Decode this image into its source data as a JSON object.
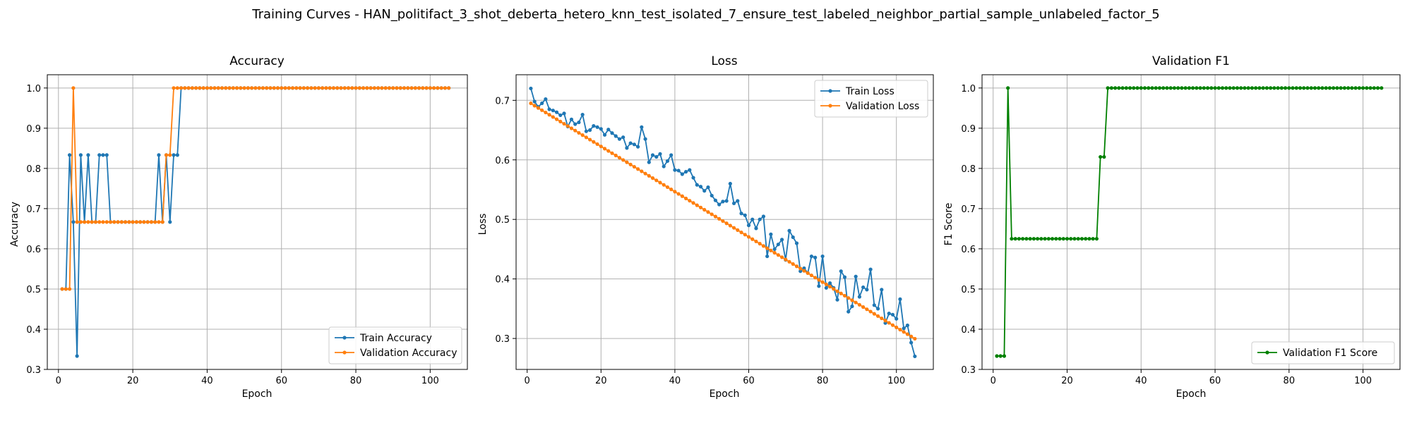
{
  "figure_title": "Training Curves - HAN_politifact_3_shot_deberta_hetero_knn_test_isolated_7_ensure_test_labeled_neighbor_partial_sample_unlabeled_factor_5",
  "colors": {
    "blue": "#1f77b4",
    "orange": "#ff7f0e",
    "green": "#008000",
    "grid": "#b0b0b0"
  },
  "chart_data": [
    {
      "type": "line",
      "title": "Accuracy",
      "xlabel": "Epoch",
      "ylabel": "Accuracy",
      "xlim": [
        -3,
        110
      ],
      "ylim": [
        0.3,
        1.033
      ],
      "xticks": [
        0,
        20,
        40,
        60,
        80,
        100
      ],
      "yticks": [
        0.3,
        0.4,
        0.5,
        0.6,
        0.7,
        0.8,
        0.9,
        1.0
      ],
      "grid": true,
      "legend_position": "lower-right",
      "x": [
        1,
        2,
        3,
        4,
        5,
        6,
        7,
        8,
        9,
        10,
        11,
        12,
        13,
        14,
        15,
        16,
        17,
        18,
        19,
        20,
        21,
        22,
        23,
        24,
        25,
        26,
        27,
        28,
        29,
        30,
        31,
        32,
        33,
        34,
        35,
        36,
        37,
        38,
        39,
        40,
        41,
        42,
        43,
        44,
        45,
        46,
        47,
        48,
        49,
        50,
        51,
        52,
        53,
        54,
        55,
        56,
        57,
        58,
        59,
        60,
        61,
        62,
        63,
        64,
        65,
        66,
        67,
        68,
        69,
        70,
        71,
        72,
        73,
        74,
        75,
        76,
        77,
        78,
        79,
        80,
        81,
        82,
        83,
        84,
        85,
        86,
        87,
        88,
        89,
        90,
        91,
        92,
        93,
        94,
        95,
        96,
        97,
        98,
        99,
        100,
        101,
        102,
        103,
        104,
        105
      ],
      "series": [
        {
          "name": "Train Accuracy",
          "color": "#1f77b4",
          "values": [
            0.5,
            0.5,
            0.8333,
            0.6667,
            0.3333,
            0.8333,
            0.6667,
            0.8333,
            0.6667,
            0.6667,
            0.8333,
            0.8333,
            0.8333,
            0.6667,
            0.6667,
            0.6667,
            0.6667,
            0.6667,
            0.6667,
            0.6667,
            0.6667,
            0.6667,
            0.6667,
            0.6667,
            0.6667,
            0.6667,
            0.8333,
            0.6667,
            0.8333,
            0.6667,
            0.8333,
            0.8333,
            1,
            1,
            1,
            1,
            1,
            1,
            1,
            1,
            1,
            1,
            1,
            1,
            1,
            1,
            1,
            1,
            1,
            1,
            1,
            1,
            1,
            1,
            1,
            1,
            1,
            1,
            1,
            1,
            1,
            1,
            1,
            1,
            1,
            1,
            1,
            1,
            1,
            1,
            1,
            1,
            1,
            1,
            1,
            1,
            1,
            1,
            1,
            1,
            1,
            1,
            1,
            1,
            1,
            1,
            1,
            1,
            1,
            1,
            1,
            1,
            1,
            1,
            1,
            1,
            1,
            1,
            1,
            1,
            1,
            1,
            1,
            1,
            1
          ]
        },
        {
          "name": "Validation Accuracy",
          "color": "#ff7f0e",
          "values": [
            0.5,
            0.5,
            0.5,
            1,
            0.6667,
            0.6667,
            0.6667,
            0.6667,
            0.6667,
            0.6667,
            0.6667,
            0.6667,
            0.6667,
            0.6667,
            0.6667,
            0.6667,
            0.6667,
            0.6667,
            0.6667,
            0.6667,
            0.6667,
            0.6667,
            0.6667,
            0.6667,
            0.6667,
            0.6667,
            0.6667,
            0.6667,
            0.8333,
            0.8333,
            1,
            1,
            1,
            1,
            1,
            1,
            1,
            1,
            1,
            1,
            1,
            1,
            1,
            1,
            1,
            1,
            1,
            1,
            1,
            1,
            1,
            1,
            1,
            1,
            1,
            1,
            1,
            1,
            1,
            1,
            1,
            1,
            1,
            1,
            1,
            1,
            1,
            1,
            1,
            1,
            1,
            1,
            1,
            1,
            1,
            1,
            1,
            1,
            1,
            1,
            1,
            1,
            1,
            1,
            1,
            1,
            1,
            1,
            1,
            1,
            1,
            1,
            1,
            1,
            1,
            1,
            1,
            1,
            1,
            1,
            1,
            1,
            1,
            1,
            1
          ]
        }
      ]
    },
    {
      "type": "line",
      "title": "Loss",
      "xlabel": "Epoch",
      "ylabel": "Loss",
      "xlim": [
        -3,
        110
      ],
      "ylim": [
        0.248,
        0.743
      ],
      "xticks": [
        0,
        20,
        40,
        60,
        80,
        100
      ],
      "yticks": [
        0.3,
        0.4,
        0.5,
        0.6,
        0.7
      ],
      "grid": true,
      "legend_position": "upper-right",
      "x": [
        1,
        2,
        3,
        4,
        5,
        6,
        7,
        8,
        9,
        10,
        11,
        12,
        13,
        14,
        15,
        16,
        17,
        18,
        19,
        20,
        21,
        22,
        23,
        24,
        25,
        26,
        27,
        28,
        29,
        30,
        31,
        32,
        33,
        34,
        35,
        36,
        37,
        38,
        39,
        40,
        41,
        42,
        43,
        44,
        45,
        46,
        47,
        48,
        49,
        50,
        51,
        52,
        53,
        54,
        55,
        56,
        57,
        58,
        59,
        60,
        61,
        62,
        63,
        64,
        65,
        66,
        67,
        68,
        69,
        70,
        71,
        72,
        73,
        74,
        75,
        76,
        77,
        78,
        79,
        80,
        81,
        82,
        83,
        84,
        85,
        86,
        87,
        88,
        89,
        90,
        91,
        92,
        93,
        94,
        95,
        96,
        97,
        98,
        99,
        100,
        101,
        102,
        103,
        104,
        105
      ],
      "series": [
        {
          "name": "Train Loss",
          "color": "#1f77b4",
          "values": [
            0.72,
            0.698,
            0.689,
            0.695,
            0.702,
            0.685,
            0.683,
            0.68,
            0.675,
            0.678,
            0.656,
            0.668,
            0.66,
            0.663,
            0.676,
            0.648,
            0.65,
            0.657,
            0.655,
            0.652,
            0.642,
            0.651,
            0.645,
            0.64,
            0.635,
            0.638,
            0.62,
            0.628,
            0.626,
            0.622,
            0.655,
            0.635,
            0.596,
            0.608,
            0.605,
            0.61,
            0.589,
            0.598,
            0.608,
            0.583,
            0.582,
            0.576,
            0.58,
            0.583,
            0.57,
            0.558,
            0.555,
            0.548,
            0.554,
            0.54,
            0.532,
            0.525,
            0.53,
            0.531,
            0.56,
            0.527,
            0.531,
            0.51,
            0.507,
            0.49,
            0.5,
            0.485,
            0.5,
            0.505,
            0.438,
            0.475,
            0.45,
            0.458,
            0.466,
            0.432,
            0.481,
            0.47,
            0.46,
            0.413,
            0.418,
            0.41,
            0.438,
            0.436,
            0.388,
            0.438,
            0.385,
            0.393,
            0.385,
            0.365,
            0.413,
            0.403,
            0.345,
            0.354,
            0.404,
            0.37,
            0.386,
            0.382,
            0.416,
            0.356,
            0.35,
            0.382,
            0.326,
            0.342,
            0.34,
            0.333,
            0.366,
            0.317,
            0.322,
            0.293,
            0.27
          ]
        },
        {
          "name": "Validation Loss",
          "color": "#ff7f0e",
          "values": [
            0.695,
            0.691,
            0.6872,
            0.6834,
            0.6796,
            0.6758,
            0.672,
            0.6682,
            0.6644,
            0.6606,
            0.6568,
            0.653,
            0.6492,
            0.6454,
            0.6416,
            0.6378,
            0.634,
            0.6302,
            0.6264,
            0.6226,
            0.6188,
            0.615,
            0.6112,
            0.6074,
            0.6036,
            0.5998,
            0.596,
            0.5922,
            0.5884,
            0.5846,
            0.5808,
            0.577,
            0.5732,
            0.5694,
            0.5656,
            0.5618,
            0.558,
            0.5542,
            0.5504,
            0.5466,
            0.5428,
            0.539,
            0.5352,
            0.5314,
            0.5276,
            0.5238,
            0.52,
            0.5162,
            0.5124,
            0.5086,
            0.5048,
            0.501,
            0.4972,
            0.4934,
            0.4896,
            0.4858,
            0.482,
            0.4782,
            0.4744,
            0.4706,
            0.4668,
            0.463,
            0.4592,
            0.4554,
            0.4516,
            0.4478,
            0.444,
            0.4402,
            0.4364,
            0.4326,
            0.4288,
            0.425,
            0.4212,
            0.4174,
            0.4136,
            0.4098,
            0.406,
            0.4022,
            0.3984,
            0.3946,
            0.3908,
            0.387,
            0.3832,
            0.3794,
            0.3756,
            0.3718,
            0.368,
            0.3642,
            0.3604,
            0.3566,
            0.3528,
            0.349,
            0.3452,
            0.3414,
            0.3376,
            0.3338,
            0.33,
            0.3262,
            0.3224,
            0.3186,
            0.3148,
            0.311,
            0.3072,
            0.3034,
            0.2996
          ]
        }
      ]
    },
    {
      "type": "line",
      "title": "Validation F1",
      "xlabel": "Epoch",
      "ylabel": "F1 Score",
      "xlim": [
        -3,
        110
      ],
      "ylim": [
        0.3,
        1.033
      ],
      "xticks": [
        0,
        20,
        40,
        60,
        80,
        100
      ],
      "yticks": [
        0.3,
        0.4,
        0.5,
        0.6,
        0.7,
        0.8,
        0.9,
        1.0
      ],
      "grid": true,
      "legend_position": "lower-right",
      "x": [
        1,
        2,
        3,
        4,
        5,
        6,
        7,
        8,
        9,
        10,
        11,
        12,
        13,
        14,
        15,
        16,
        17,
        18,
        19,
        20,
        21,
        22,
        23,
        24,
        25,
        26,
        27,
        28,
        29,
        30,
        31,
        32,
        33,
        34,
        35,
        36,
        37,
        38,
        39,
        40,
        41,
        42,
        43,
        44,
        45,
        46,
        47,
        48,
        49,
        50,
        51,
        52,
        53,
        54,
        55,
        56,
        57,
        58,
        59,
        60,
        61,
        62,
        63,
        64,
        65,
        66,
        67,
        68,
        69,
        70,
        71,
        72,
        73,
        74,
        75,
        76,
        77,
        78,
        79,
        80,
        81,
        82,
        83,
        84,
        85,
        86,
        87,
        88,
        89,
        90,
        91,
        92,
        93,
        94,
        95,
        96,
        97,
        98,
        99,
        100,
        101,
        102,
        103,
        104,
        105
      ],
      "series": [
        {
          "name": "Validation F1 Score",
          "color": "#008000",
          "values": [
            0.3333,
            0.3333,
            0.3333,
            1,
            0.625,
            0.625,
            0.625,
            0.625,
            0.625,
            0.625,
            0.625,
            0.625,
            0.625,
            0.625,
            0.625,
            0.625,
            0.625,
            0.625,
            0.625,
            0.625,
            0.625,
            0.625,
            0.625,
            0.625,
            0.625,
            0.625,
            0.625,
            0.625,
            0.8286,
            0.8286,
            1,
            1,
            1,
            1,
            1,
            1,
            1,
            1,
            1,
            1,
            1,
            1,
            1,
            1,
            1,
            1,
            1,
            1,
            1,
            1,
            1,
            1,
            1,
            1,
            1,
            1,
            1,
            1,
            1,
            1,
            1,
            1,
            1,
            1,
            1,
            1,
            1,
            1,
            1,
            1,
            1,
            1,
            1,
            1,
            1,
            1,
            1,
            1,
            1,
            1,
            1,
            1,
            1,
            1,
            1,
            1,
            1,
            1,
            1,
            1,
            1,
            1,
            1,
            1,
            1,
            1,
            1,
            1,
            1,
            1,
            1,
            1,
            1,
            1,
            1
          ]
        }
      ]
    }
  ]
}
